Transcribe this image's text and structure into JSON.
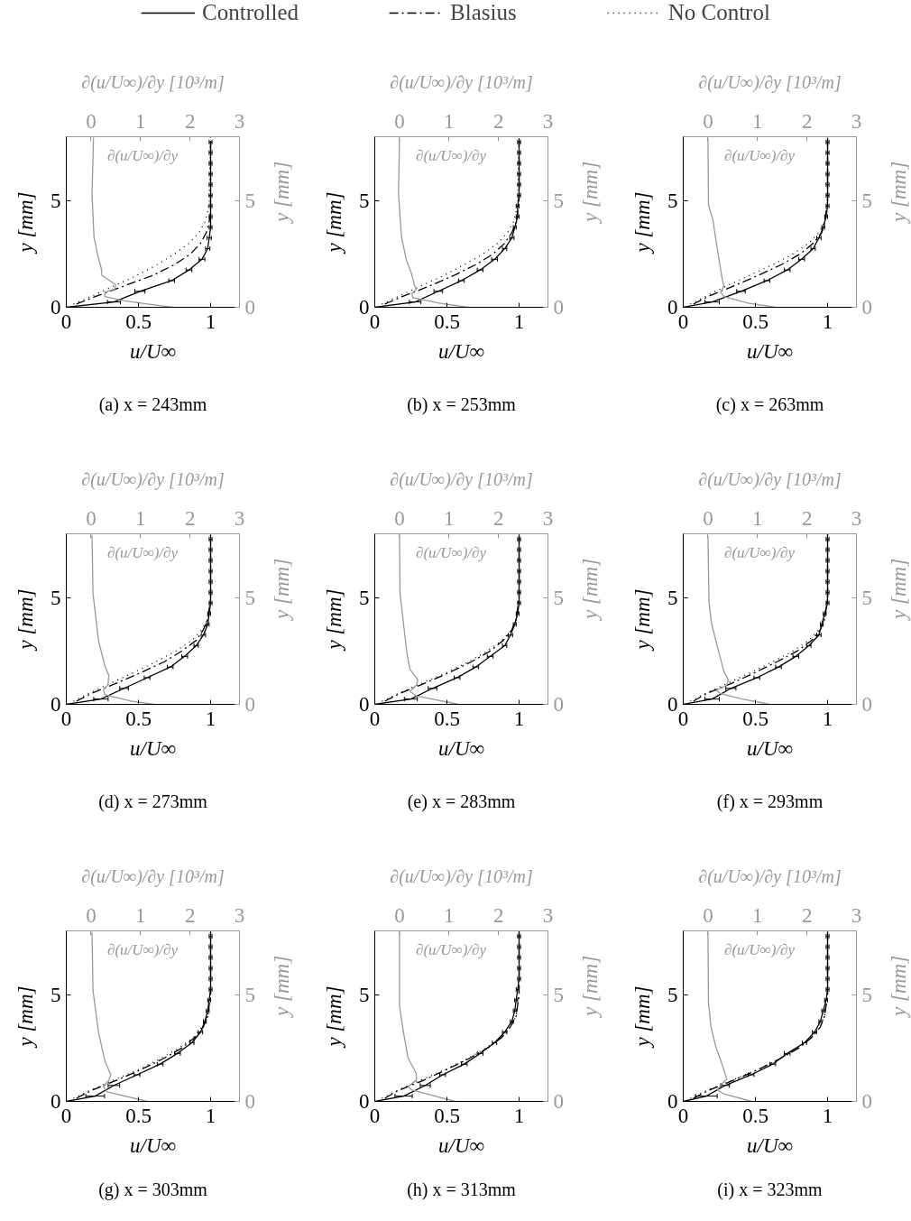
{
  "chart_data": [
    {
      "type": "line",
      "title": "(a) x = 243mm",
      "xlabel": "u/U∞",
      "ylabel": "y [mm]",
      "x2label": "∂(u/U∞)/∂y [10³/m]",
      "y2label": "y [mm]",
      "xlim": [
        0,
        1.2
      ],
      "xticks": [
        0,
        0.5,
        1
      ],
      "ylim": [
        0,
        8
      ],
      "yticks": [
        0,
        5
      ],
      "x2lim": [
        -0.5,
        3
      ],
      "x2ticks": [
        0,
        1,
        2,
        3
      ],
      "y2lim": [
        0,
        8
      ],
      "y2ticks": [
        0,
        5
      ],
      "legend": "top",
      "series": [
        {
          "name": "Controlled",
          "color": "#000000",
          "line_style": "solid",
          "x": [
            0,
            0.33,
            0.51,
            0.73,
            0.85,
            0.94,
            0.98,
            0.99,
            1,
            1,
            1,
            1,
            1,
            1,
            1,
            1,
            1
          ],
          "values": [
            0,
            0.25,
            0.75,
            1.25,
            1.75,
            2.25,
            2.75,
            3.25,
            3.75,
            4.25,
            4.75,
            5.25,
            5.75,
            6.25,
            6.75,
            7.25,
            7.75
          ],
          "xerrors": [
            null,
            0.045,
            0.035,
            0.02,
            0.02,
            0.02,
            0.015,
            0.015,
            0.01,
            0.01,
            0.01,
            0.01,
            0.01,
            0.01,
            0.01,
            0.01,
            0.01
          ]
        },
        {
          "name": "Blasius",
          "color": "#000000",
          "line_style": "dashdot",
          "x": [
            0.07,
            0.2,
            0.4,
            0.6,
            0.75,
            0.86,
            0.93,
            0.97,
            0.99,
            1,
            1,
            1
          ],
          "values": [
            0.15,
            0.5,
            1,
            1.5,
            2,
            2.5,
            3,
            3.5,
            4,
            4.5,
            5,
            8
          ]
        },
        {
          "name": "No Control",
          "color": "#000000",
          "line_style": "dotted",
          "x": [
            0.05,
            0.17,
            0.33,
            0.49,
            0.63,
            0.75,
            0.85,
            0.92,
            0.96,
            0.98,
            0.99,
            1
          ],
          "values": [
            0.15,
            0.5,
            1,
            1.5,
            2,
            2.5,
            3,
            3.5,
            4,
            4.5,
            5,
            8
          ]
        },
        {
          "name": "∂(u/U∞)/∂y",
          "color": "#999999",
          "axis": "x2",
          "line_style": "solid",
          "x": [
            0.05,
            0.02,
            0.06,
            0.14,
            0.21,
            0.22,
            0.5,
            0.48,
            0.28,
            0.28,
            0.68,
            1.14,
            1.65
          ],
          "values": [
            7.95,
            5.3,
            3.3,
            2.4,
            1.8,
            1.5,
            1.05,
            0.85,
            0.7,
            0.5,
            0.3,
            0.15,
            0
          ]
        }
      ]
    },
    {
      "type": "line",
      "title": "(b) x = 253mm",
      "xlabel": "u/U∞",
      "ylabel": "y [mm]",
      "x2label": "∂(u/U∞)/∂y [10³/m]",
      "y2label": "y [mm]",
      "xlim": [
        0,
        1.2
      ],
      "xticks": [
        0,
        0.5,
        1
      ],
      "ylim": [
        0,
        8
      ],
      "yticks": [
        0,
        5
      ],
      "x2lim": [
        -0.5,
        3
      ],
      "x2ticks": [
        0,
        1,
        2,
        3
      ],
      "y2lim": [
        0,
        8
      ],
      "y2ticks": [
        0,
        5
      ],
      "series": [
        {
          "color": "#000000",
          "line_style": "solid",
          "x": [
            0,
            0.28,
            0.44,
            0.6,
            0.73,
            0.83,
            0.9,
            0.95,
            0.97,
            0.99,
            0.99,
            1,
            1,
            1,
            1,
            1,
            1
          ],
          "values": [
            0,
            0.25,
            0.75,
            1.25,
            1.75,
            2.25,
            2.75,
            3.25,
            3.75,
            4.25,
            4.75,
            5.25,
            5.75,
            6.25,
            6.75,
            7.25,
            7.75
          ],
          "xerrors": [
            null,
            0.04,
            0.03,
            0.02,
            0.02,
            0.02,
            0.015,
            0.015,
            0.01,
            0.01,
            0.01,
            0.01,
            0.01,
            0.01,
            0.01,
            0.01,
            0.01
          ]
        },
        {
          "color": "#000000",
          "line_style": "dashdot",
          "x": [
            0.07,
            0.19,
            0.38,
            0.55,
            0.7,
            0.82,
            0.9,
            0.95,
            0.98,
            0.99,
            1,
            1
          ],
          "values": [
            0.15,
            0.5,
            1,
            1.5,
            2,
            2.5,
            3,
            3.5,
            4,
            4.5,
            5,
            8
          ]
        },
        {
          "color": "#000000",
          "line_style": "dotted",
          "x": [
            0.05,
            0.16,
            0.32,
            0.48,
            0.62,
            0.75,
            0.85,
            0.92,
            0.96,
            0.98,
            0.99,
            1
          ],
          "values": [
            0.15,
            0.5,
            1,
            1.5,
            2,
            2.5,
            3,
            3.5,
            4,
            4.5,
            5,
            8
          ]
        },
        {
          "name": "∂(u/U∞)/∂y",
          "color": "#999999",
          "axis": "x2",
          "line_style": "solid",
          "x": [
            0,
            -0.02,
            0.04,
            0.14,
            0.24,
            0.3,
            0.34,
            0.25,
            0.27,
            0.8,
            1.38
          ],
          "values": [
            7.95,
            5.3,
            3.3,
            2.2,
            1.6,
            1.05,
            0.85,
            0.65,
            0.45,
            0.2,
            0
          ]
        }
      ]
    },
    {
      "type": "line",
      "title": "(c) x = 263mm",
      "xlabel": "u/U∞",
      "ylabel": "y [mm]",
      "x2label": "∂(u/U∞)/∂y [10³/m]",
      "y2label": "y [mm]",
      "xlim": [
        0,
        1.2
      ],
      "xticks": [
        0,
        0.5,
        1
      ],
      "ylim": [
        0,
        8
      ],
      "yticks": [
        0,
        5
      ],
      "x2lim": [
        -0.5,
        3
      ],
      "x2ticks": [
        0,
        1,
        2,
        3
      ],
      "y2lim": [
        0,
        8
      ],
      "y2ticks": [
        0,
        5
      ],
      "series": [
        {
          "color": "#000000",
          "line_style": "solid",
          "x": [
            0,
            0.2,
            0.4,
            0.58,
            0.72,
            0.82,
            0.9,
            0.94,
            0.97,
            0.99,
            1,
            1,
            1,
            1,
            1,
            1,
            1
          ],
          "values": [
            0,
            0.25,
            0.75,
            1.25,
            1.75,
            2.25,
            2.75,
            3.25,
            3.75,
            4.25,
            4.75,
            5.25,
            5.75,
            6.25,
            6.75,
            7.25,
            7.75
          ],
          "xerrors": [
            null,
            0.05,
            0.03,
            0.02,
            0.02,
            0.02,
            0.015,
            0.015,
            0.01,
            0.01,
            0.01,
            0.01,
            0.01,
            0.01,
            0.01,
            0.01,
            0.01
          ]
        },
        {
          "color": "#000000",
          "line_style": "dashdot",
          "x": [
            0.07,
            0.17,
            0.35,
            0.52,
            0.68,
            0.81,
            0.9,
            0.96,
            0.98,
            0.99,
            1,
            1
          ],
          "values": [
            0.15,
            0.5,
            1,
            1.5,
            2,
            2.5,
            3,
            3.5,
            4,
            4.5,
            5,
            8
          ]
        },
        {
          "color": "#000000",
          "line_style": "dotted",
          "x": [
            0.05,
            0.15,
            0.3,
            0.46,
            0.62,
            0.76,
            0.87,
            0.94,
            0.98,
            0.99,
            1,
            1
          ],
          "values": [
            0.15,
            0.5,
            1,
            1.5,
            2,
            2.5,
            3,
            3.5,
            4,
            4.5,
            5,
            8
          ]
        },
        {
          "name": "∂(u/U∞)/∂y",
          "color": "#999999",
          "axis": "x2",
          "line_style": "solid",
          "x": [
            0,
            0.01,
            0.1,
            0.19,
            0.29,
            0.32,
            0.26,
            0.32,
            0.81,
            1.37
          ],
          "values": [
            7.9,
            4.8,
            4.1,
            2.7,
            1.3,
            1,
            0.7,
            0.5,
            0.2,
            0
          ]
        }
      ]
    },
    {
      "type": "line",
      "title": "(d) x = 273mm",
      "xlabel": "u/U∞",
      "ylabel": "y [mm]",
      "x2label": "∂(u/U∞)/∂y [10³/m]",
      "y2label": "y [mm]",
      "xlim": [
        0,
        1.2
      ],
      "xticks": [
        0,
        0.5,
        1
      ],
      "ylim": [
        0,
        8
      ],
      "yticks": [
        0,
        5
      ],
      "x2lim": [
        -0.5,
        3
      ],
      "x2ticks": [
        0,
        1,
        2,
        3
      ],
      "y2lim": [
        0,
        8
      ],
      "y2ticks": [
        0,
        5
      ],
      "series": [
        {
          "color": "#000000",
          "line_style": "solid",
          "x": [
            0,
            0.24,
            0.4,
            0.56,
            0.72,
            0.82,
            0.9,
            0.95,
            0.98,
            0.99,
            1,
            1,
            1,
            1,
            1,
            1,
            1
          ],
          "values": [
            0,
            0.25,
            0.75,
            1.25,
            1.75,
            2.25,
            2.75,
            3.25,
            3.75,
            4.25,
            4.75,
            5.25,
            5.75,
            6.25,
            6.75,
            7.25,
            7.75
          ],
          "xerrors": [
            null,
            0.05,
            0.03,
            0.02,
            0.02,
            0.02,
            0.015,
            0.015,
            0.01,
            0.01,
            0.01,
            0.01,
            0.01,
            0.01,
            0.01,
            0.01,
            0.01
          ]
        },
        {
          "color": "#000000",
          "line_style": "dashdot",
          "x": [
            0.07,
            0.17,
            0.35,
            0.52,
            0.68,
            0.8,
            0.9,
            0.95,
            0.98,
            0.99,
            1,
            1
          ],
          "values": [
            0.15,
            0.5,
            1,
            1.5,
            2,
            2.5,
            3,
            3.5,
            4,
            4.5,
            5,
            8
          ]
        },
        {
          "color": "#000000",
          "line_style": "dotted",
          "x": [
            0.05,
            0.15,
            0.31,
            0.47,
            0.62,
            0.76,
            0.87,
            0.94,
            0.98,
            0.99,
            1,
            1
          ],
          "values": [
            0.15,
            0.5,
            1,
            1.5,
            2,
            2.5,
            3,
            3.5,
            4,
            4.5,
            5,
            8
          ]
        },
        {
          "name": "∂(u/U∞)/∂y",
          "color": "#999999",
          "axis": "x2",
          "line_style": "solid",
          "x": [
            0.02,
            0.04,
            0.15,
            0.28,
            0.36,
            0.34,
            0.25,
            0.28,
            0.81,
            1.27
          ],
          "values": [
            7.95,
            5.2,
            3,
            1.8,
            1.35,
            0.9,
            0.7,
            0.45,
            0.15,
            0
          ]
        }
      ]
    },
    {
      "type": "line",
      "title": "(e) x = 283mm",
      "xlabel": "u/U∞",
      "ylabel": "y [mm]",
      "x2label": "∂(u/U∞)/∂y [10³/m]",
      "y2label": "y [mm]",
      "xlim": [
        0,
        1.2
      ],
      "xticks": [
        0,
        0.5,
        1
      ],
      "ylim": [
        0,
        8
      ],
      "yticks": [
        0,
        5
      ],
      "x2lim": [
        -0.5,
        3
      ],
      "x2ticks": [
        0,
        1,
        2,
        3
      ],
      "y2lim": [
        0,
        8
      ],
      "y2ticks": [
        0,
        5
      ],
      "series": [
        {
          "color": "#000000",
          "line_style": "solid",
          "x": [
            0,
            0.25,
            0.4,
            0.57,
            0.7,
            0.8,
            0.9,
            0.94,
            0.97,
            0.99,
            1,
            1,
            1,
            1,
            1,
            1,
            1
          ],
          "values": [
            0,
            0.25,
            0.75,
            1.25,
            1.75,
            2.25,
            2.75,
            3.25,
            3.75,
            4.25,
            4.75,
            5.25,
            5.75,
            6.25,
            6.75,
            7.25,
            7.75
          ],
          "xerrors": [
            null,
            0.045,
            0.03,
            0.02,
            0.02,
            0.02,
            0.015,
            0.015,
            0.01,
            0.01,
            0.01,
            0.01,
            0.01,
            0.01,
            0.01,
            0.01,
            0.01
          ]
        },
        {
          "color": "#000000",
          "line_style": "dashdot",
          "x": [
            0.07,
            0.17,
            0.35,
            0.52,
            0.67,
            0.8,
            0.89,
            0.95,
            0.98,
            0.99,
            1,
            1
          ],
          "values": [
            0.15,
            0.5,
            1,
            1.5,
            2,
            2.5,
            3,
            3.5,
            4,
            4.5,
            5,
            8
          ]
        },
        {
          "color": "#000000",
          "line_style": "dotted",
          "x": [
            0.05,
            0.16,
            0.33,
            0.5,
            0.65,
            0.78,
            0.88,
            0.95,
            0.98,
            0.99,
            1,
            1
          ],
          "values": [
            0.15,
            0.5,
            1,
            1.5,
            2,
            2.5,
            3,
            3.5,
            4,
            4.5,
            5,
            8
          ]
        },
        {
          "name": "∂(u/U∞)/∂y",
          "color": "#999999",
          "axis": "x2",
          "line_style": "solid",
          "x": [
            0,
            0.01,
            0.08,
            0.15,
            0.21,
            0.37,
            0.34,
            0.21,
            0.34,
            1.19
          ],
          "values": [
            7.95,
            5.2,
            3.8,
            2.4,
            1.65,
            1.15,
            0.9,
            0.6,
            0.4,
            0
          ]
        }
      ]
    },
    {
      "type": "line",
      "title": "(f) x = 293mm",
      "xlabel": "u/U∞",
      "ylabel": "y [mm]",
      "x2label": "∂(u/U∞)/∂y [10³/m]",
      "y2label": "y [mm]",
      "xlim": [
        0,
        1.2
      ],
      "xticks": [
        0,
        0.5,
        1
      ],
      "ylim": [
        0,
        8
      ],
      "yticks": [
        0,
        5
      ],
      "x2lim": [
        -0.5,
        3
      ],
      "x2ticks": [
        0,
        1,
        2,
        3
      ],
      "y2lim": [
        0,
        8
      ],
      "y2ticks": [
        0,
        5
      ],
      "series": [
        {
          "color": "#000000",
          "line_style": "solid",
          "x": [
            0,
            0.2,
            0.33,
            0.51,
            0.66,
            0.78,
            0.87,
            0.94,
            0.96,
            0.98,
            1,
            1,
            1,
            1,
            1,
            1,
            1
          ],
          "values": [
            0,
            0.25,
            0.75,
            1.25,
            1.75,
            2.25,
            2.75,
            3.25,
            3.75,
            4.25,
            4.75,
            5.25,
            5.75,
            6.25,
            6.75,
            7.25,
            7.75
          ],
          "xerrors": [
            null,
            0.05,
            0.035,
            0.02,
            0.02,
            0.02,
            0.015,
            0.015,
            0.01,
            0.01,
            0.01,
            0.01,
            0.01,
            0.01,
            0.01,
            0.01,
            0.01
          ]
        },
        {
          "color": "#000000",
          "line_style": "dashdot",
          "x": [
            0.07,
            0.16,
            0.34,
            0.5,
            0.65,
            0.79,
            0.89,
            0.95,
            0.98,
            0.99,
            1,
            1
          ],
          "values": [
            0.15,
            0.5,
            1,
            1.5,
            2,
            2.5,
            3,
            3.5,
            4,
            4.5,
            5,
            8
          ]
        },
        {
          "color": "#000000",
          "line_style": "dotted",
          "x": [
            0.05,
            0.15,
            0.31,
            0.47,
            0.62,
            0.76,
            0.87,
            0.94,
            0.98,
            0.99,
            1,
            1
          ],
          "values": [
            0.15,
            0.5,
            1,
            1.5,
            2,
            2.5,
            3,
            3.5,
            4,
            4.5,
            5,
            8
          ]
        },
        {
          "name": "∂(u/U∞)/∂y",
          "color": "#999999",
          "axis": "x2",
          "line_style": "solid",
          "x": [
            0,
            0.02,
            0.07,
            0.19,
            0.32,
            0.41,
            0.38,
            0.16,
            0.26,
            0.69,
            1.25
          ],
          "values": [
            7.9,
            4.8,
            3.8,
            2.7,
            1.55,
            1.15,
            0.9,
            0.65,
            0.5,
            0.25,
            0
          ]
        }
      ]
    },
    {
      "type": "line",
      "title": "(g) x = 303mm",
      "xlabel": "u/U∞",
      "ylabel": "y [mm]",
      "x2label": "∂(u/U∞)/∂y [10³/m]",
      "y2label": "y [mm]",
      "xlim": [
        0,
        1.2
      ],
      "xticks": [
        0,
        0.5,
        1
      ],
      "ylim": [
        0,
        8
      ],
      "yticks": [
        0,
        5
      ],
      "x2lim": [
        -0.5,
        3
      ],
      "x2ticks": [
        0,
        1,
        2,
        3
      ],
      "y2lim": [
        0,
        8
      ],
      "y2ticks": [
        0,
        5
      ],
      "series": [
        {
          "color": "#000000",
          "line_style": "solid",
          "x": [
            0,
            0.2,
            0.33,
            0.49,
            0.65,
            0.77,
            0.87,
            0.93,
            0.96,
            0.98,
            0.99,
            1,
            1,
            1,
            1,
            1,
            1
          ],
          "values": [
            0,
            0.25,
            0.75,
            1.25,
            1.75,
            2.25,
            2.75,
            3.25,
            3.75,
            4.25,
            4.75,
            5.25,
            5.75,
            6.25,
            6.75,
            7.25,
            7.75
          ],
          "xerrors": [
            null,
            0.065,
            0.04,
            0.02,
            0.02,
            0.02,
            0.015,
            0.015,
            0.01,
            0.01,
            0.01,
            0.01,
            0.01,
            0.01,
            0.01,
            0.01,
            0.01
          ]
        },
        {
          "color": "#000000",
          "line_style": "dashdot",
          "x": [
            0.07,
            0.17,
            0.35,
            0.52,
            0.67,
            0.8,
            0.89,
            0.95,
            0.98,
            0.99,
            1,
            1
          ],
          "values": [
            0.15,
            0.5,
            1,
            1.5,
            2,
            2.5,
            3,
            3.5,
            4,
            4.5,
            5,
            8
          ]
        },
        {
          "color": "#000000",
          "line_style": "dotted",
          "x": [
            0.05,
            0.16,
            0.33,
            0.5,
            0.65,
            0.78,
            0.88,
            0.94,
            0.98,
            0.99,
            1,
            1
          ],
          "values": [
            0.15,
            0.5,
            1,
            1.5,
            2,
            2.5,
            3,
            3.5,
            4,
            4.5,
            5,
            8
          ]
        },
        {
          "name": "∂(u/U∞)/∂y",
          "color": "#999999",
          "axis": "x2",
          "line_style": "solid",
          "x": [
            0.02,
            0.04,
            0.15,
            0.28,
            0.4,
            0.36,
            0.25,
            0.32,
            1.14
          ],
          "values": [
            7.95,
            5.2,
            3.25,
            1.9,
            1.25,
            1,
            0.7,
            0.45,
            0
          ]
        }
      ]
    },
    {
      "type": "line",
      "title": "(h) x = 313mm",
      "xlabel": "u/U∞",
      "ylabel": "y [mm]",
      "x2label": "∂(u/U∞)/∂y [10³/m]",
      "y2label": "y [mm]",
      "xlim": [
        0,
        1.2
      ],
      "xticks": [
        0,
        0.5,
        1
      ],
      "ylim": [
        0,
        8
      ],
      "yticks": [
        0,
        5
      ],
      "x2lim": [
        -0.5,
        3
      ],
      "x2ticks": [
        0,
        1,
        2,
        3
      ],
      "y2lim": [
        0,
        8
      ],
      "y2ticks": [
        0,
        5
      ],
      "series": [
        {
          "color": "#000000",
          "line_style": "solid",
          "x": [
            0,
            0.2,
            0.35,
            0.47,
            0.62,
            0.73,
            0.83,
            0.9,
            0.95,
            0.97,
            0.98,
            0.99,
            1,
            1,
            1,
            1,
            1
          ],
          "values": [
            0,
            0.25,
            0.75,
            1.25,
            1.75,
            2.25,
            2.75,
            3.25,
            3.75,
            4.25,
            4.75,
            5.25,
            5.75,
            6.25,
            6.75,
            7.25,
            7.75
          ],
          "xerrors": [
            null,
            0.06,
            0.035,
            0.02,
            0.02,
            0.02,
            0.015,
            0.015,
            0.01,
            0.01,
            0.01,
            0.01,
            0.01,
            0.01,
            0.01,
            0.01,
            0.01
          ]
        },
        {
          "color": "#000000",
          "line_style": "dashdot",
          "x": [
            0.07,
            0.16,
            0.34,
            0.5,
            0.65,
            0.78,
            0.88,
            0.94,
            0.98,
            0.99,
            1,
            1
          ],
          "values": [
            0.15,
            0.5,
            1,
            1.5,
            2,
            2.5,
            3,
            3.5,
            4,
            4.5,
            5,
            8
          ]
        },
        {
          "color": "#000000",
          "line_style": "dotted",
          "x": [
            0.05,
            0.15,
            0.32,
            0.49,
            0.64,
            0.77,
            0.88,
            0.94,
            0.98,
            0.99,
            1,
            1
          ],
          "values": [
            0.15,
            0.5,
            1,
            1.5,
            2,
            2.5,
            3,
            3.5,
            4,
            4.5,
            5,
            8
          ]
        },
        {
          "name": "∂(u/U∞)/∂y",
          "color": "#999999",
          "axis": "x2",
          "line_style": "solid",
          "x": [
            0,
            0,
            0.08,
            0.17,
            0.34,
            0.34,
            0.17,
            0.24,
            1.12
          ],
          "values": [
            7.95,
            4.45,
            3.25,
            2.05,
            1.3,
            1,
            0.7,
            0.55,
            0
          ]
        }
      ]
    },
    {
      "type": "line",
      "title": "(i) x = 323mm",
      "xlabel": "u/U∞",
      "ylabel": "y [mm]",
      "x2label": "∂(u/U∞)/∂y [10³/m]",
      "y2label": "y [mm]",
      "xlim": [
        0,
        1.2
      ],
      "xticks": [
        0,
        0.5,
        1
      ],
      "ylim": [
        0,
        8
      ],
      "yticks": [
        0,
        5
      ],
      "x2lim": [
        -0.5,
        3
      ],
      "x2ticks": [
        0,
        1,
        2,
        3
      ],
      "y2lim": [
        0,
        8
      ],
      "y2ticks": [
        0,
        5
      ],
      "series": [
        {
          "color": "#000000",
          "line_style": "solid",
          "x": [
            0,
            0.16,
            0.29,
            0.47,
            0.62,
            0.72,
            0.84,
            0.91,
            0.95,
            0.97,
            0.99,
            1,
            1,
            1,
            1,
            1,
            1
          ],
          "values": [
            0,
            0.25,
            0.75,
            1.25,
            1.75,
            2.25,
            2.75,
            3.25,
            3.75,
            4.25,
            4.75,
            5.25,
            5.75,
            6.25,
            6.75,
            7.25,
            7.75
          ],
          "xerrors": [
            null,
            0.075,
            0.03,
            0.02,
            0.02,
            0.02,
            0.015,
            0.015,
            0.01,
            0.01,
            0.01,
            0.01,
            0.01,
            0.01,
            0.01,
            0.01,
            0.01
          ]
        },
        {
          "color": "#000000",
          "line_style": "dashdot",
          "x": [
            0.07,
            0.17,
            0.35,
            0.52,
            0.67,
            0.8,
            0.89,
            0.95,
            0.98,
            0.99,
            1,
            1
          ],
          "values": [
            0.15,
            0.5,
            1,
            1.5,
            2,
            2.5,
            3,
            3.5,
            4,
            4.5,
            5,
            8
          ]
        },
        {
          "color": "#000000",
          "line_style": "dotted",
          "x": [
            0.05,
            0.16,
            0.34,
            0.52,
            0.67,
            0.8,
            0.89,
            0.95,
            0.98,
            0.99,
            1,
            1
          ],
          "values": [
            0.15,
            0.5,
            1,
            1.5,
            2,
            2.5,
            3,
            3.5,
            4,
            4.5,
            5,
            8
          ]
        },
        {
          "name": "∂(u/U∞)/∂y",
          "color": "#999999",
          "axis": "x2",
          "line_style": "solid",
          "x": [
            0,
            0.01,
            0.06,
            0.16,
            0.29,
            0.38,
            0.29,
            0.19,
            0.32,
            0.88
          ],
          "values": [
            7.95,
            4.65,
            3.5,
            2.55,
            1.7,
            1.05,
            0.85,
            0.55,
            0.35,
            0
          ]
        }
      ]
    }
  ]
}
